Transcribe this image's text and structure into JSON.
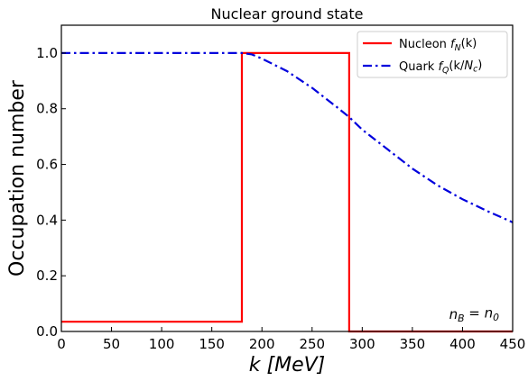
{
  "chart_data": {
    "type": "line",
    "title": "Nuclear ground state",
    "xlabel": "k [MeV]",
    "ylabel": "Occupation number",
    "xlim": [
      0,
      450
    ],
    "ylim": [
      0,
      1.1
    ],
    "xticks": [
      0,
      50,
      100,
      150,
      200,
      250,
      300,
      350,
      400,
      450
    ],
    "yticks": [
      0.0,
      0.2,
      0.4,
      0.6,
      0.8,
      1.0
    ],
    "ytick_labels": [
      "0.0",
      "0.2",
      "0.4",
      "0.6",
      "0.8",
      "1.0"
    ],
    "grid": false,
    "legend_position": "top-right",
    "annotation": "n_B = n_0",
    "series": [
      {
        "name": "Nucleon f_N(k)",
        "color": "#ff0000",
        "style": "solid",
        "x": [
          0,
          180,
          180,
          287,
          287,
          450
        ],
        "y": [
          0.035,
          0.035,
          1.0,
          1.0,
          0.0,
          0.0
        ]
      },
      {
        "name": "Quark f_Q(k/N_c)",
        "color": "#0000dd",
        "style": "dashdot",
        "x": [
          0,
          180,
          190,
          200,
          225,
          250,
          275,
          287,
          300,
          325,
          350,
          375,
          400,
          425,
          450
        ],
        "y": [
          1.0,
          1.0,
          0.995,
          0.98,
          0.935,
          0.875,
          0.805,
          0.77,
          0.725,
          0.655,
          0.585,
          0.525,
          0.475,
          0.432,
          0.392
        ]
      }
    ]
  }
}
